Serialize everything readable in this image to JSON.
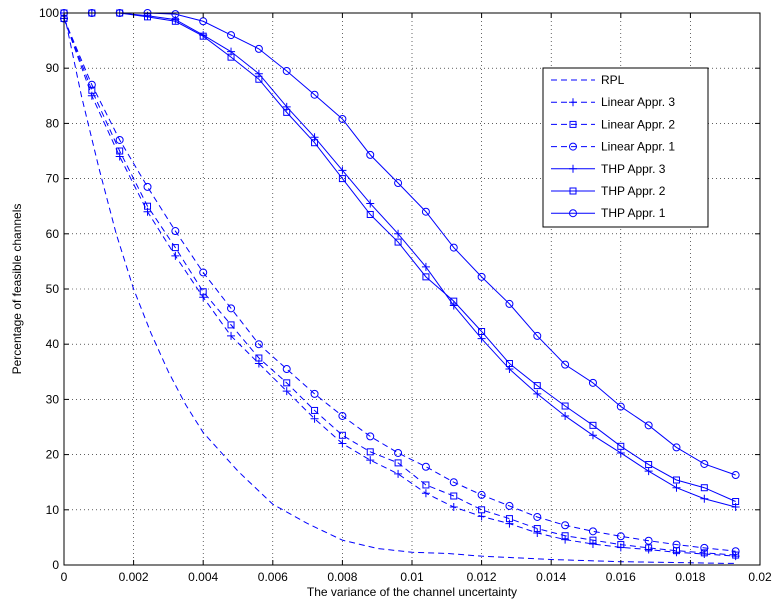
{
  "chart_data": {
    "type": "line",
    "title": "",
    "xlabel": "The variance of the channel uncertainty",
    "ylabel": "Percentage of feasible channels",
    "xlim": [
      0,
      0.02
    ],
    "ylim": [
      0,
      100
    ],
    "xticks": [
      0,
      0.002,
      0.004,
      0.006,
      0.008,
      0.01,
      0.012,
      0.014,
      0.016,
      0.018,
      0.02
    ],
    "xtick_labels": [
      "0",
      "0.002",
      "0.004",
      "0.006",
      "0.008",
      "0.01",
      "0.012",
      "0.014",
      "0.016",
      "0.018",
      "0.02"
    ],
    "yticks": [
      0,
      10,
      20,
      30,
      40,
      50,
      60,
      70,
      80,
      90,
      100
    ],
    "ytick_labels": [
      "0",
      "10",
      "20",
      "30",
      "40",
      "50",
      "60",
      "70",
      "80",
      "90",
      "100"
    ],
    "grid": true,
    "legend_position": "top-right",
    "line_color": "#0000ff",
    "series": [
      {
        "name": "RPL",
        "line": "dashed",
        "marker": "none",
        "x": [
          0,
          0.0005,
          0.001,
          0.0015,
          0.002,
          0.0025,
          0.003,
          0.0035,
          0.004,
          0.0045,
          0.005,
          0.0055,
          0.006,
          0.007,
          0.008,
          0.009,
          0.01,
          0.011,
          0.012,
          0.013,
          0.014,
          0.015,
          0.016,
          0.017,
          0.018,
          0.019,
          0.0193
        ],
        "y": [
          100,
          85,
          72,
          60,
          50,
          42,
          35,
          29,
          24,
          20.5,
          17,
          14,
          11,
          7.5,
          4.5,
          3,
          2.3,
          2.1,
          1.6,
          1.3,
          1,
          0.8,
          0.6,
          0.5,
          0.4,
          0.3,
          0.3
        ]
      },
      {
        "name": "Linear Appr. 3",
        "line": "dashed",
        "marker": "plus",
        "x": [
          0,
          0.0008,
          0.0016,
          0.0024,
          0.0032,
          0.004,
          0.0048,
          0.0056,
          0.0064,
          0.0072,
          0.008,
          0.0088,
          0.0096,
          0.0104,
          0.0112,
          0.012,
          0.0128,
          0.0136,
          0.0144,
          0.0152,
          0.016,
          0.0168,
          0.0176,
          0.0184,
          0.0193
        ],
        "y": [
          99,
          85,
          74,
          64,
          56,
          48.5,
          41.5,
          36.5,
          31.5,
          26.5,
          22,
          19,
          16.5,
          13,
          10.5,
          8.8,
          7.5,
          5.8,
          4.6,
          3.8,
          3.2,
          2.8,
          2.3,
          2,
          1.6
        ]
      },
      {
        "name": "Linear Appr. 2",
        "line": "dashed",
        "marker": "square",
        "x": [
          0,
          0.0008,
          0.0016,
          0.0024,
          0.0032,
          0.004,
          0.0048,
          0.0056,
          0.0064,
          0.0072,
          0.008,
          0.0088,
          0.0096,
          0.0104,
          0.0112,
          0.012,
          0.0128,
          0.0136,
          0.0144,
          0.0152,
          0.016,
          0.0168,
          0.0176,
          0.0184,
          0.0193
        ],
        "y": [
          99,
          86,
          75,
          65,
          57.5,
          49.5,
          43.5,
          37.5,
          33,
          28,
          23.5,
          20.5,
          18.5,
          14.5,
          12.5,
          10,
          8.4,
          6.6,
          5.3,
          4.5,
          3.7,
          3.1,
          2.6,
          2.2,
          1.8
        ]
      },
      {
        "name": "Linear Appr. 1",
        "line": "dashed",
        "marker": "circle",
        "x": [
          0,
          0.0008,
          0.0016,
          0.0024,
          0.0032,
          0.004,
          0.0048,
          0.0056,
          0.0064,
          0.0072,
          0.008,
          0.0088,
          0.0096,
          0.0104,
          0.0112,
          0.012,
          0.0128,
          0.0136,
          0.0144,
          0.0152,
          0.016,
          0.0168,
          0.0176,
          0.0184,
          0.0193
        ],
        "y": [
          99,
          87,
          77,
          68.5,
          60.5,
          53,
          46.5,
          40,
          35.5,
          31,
          27,
          23.3,
          20.3,
          17.8,
          15,
          12.7,
          10.7,
          8.7,
          7.2,
          6.1,
          5.2,
          4.4,
          3.7,
          3.1,
          2.5
        ]
      },
      {
        "name": "THP Appr. 3",
        "line": "solid",
        "marker": "plus",
        "x": [
          0,
          0.0008,
          0.0016,
          0.0024,
          0.0032,
          0.004,
          0.0048,
          0.0056,
          0.0064,
          0.0072,
          0.008,
          0.0088,
          0.0096,
          0.0104,
          0.0112,
          0.012,
          0.0128,
          0.0136,
          0.0144,
          0.0152,
          0.016,
          0.0168,
          0.0176,
          0.0184,
          0.0193
        ],
        "y": [
          100,
          100,
          100,
          99.5,
          98.8,
          96,
          93,
          89,
          83,
          77.5,
          71.5,
          65.5,
          60,
          54,
          47,
          41,
          35.5,
          31,
          27,
          23.5,
          20.3,
          17,
          14,
          12,
          10.5
        ]
      },
      {
        "name": "THP Appr. 2",
        "line": "solid",
        "marker": "square",
        "x": [
          0,
          0.0008,
          0.0016,
          0.0024,
          0.0032,
          0.004,
          0.0048,
          0.0056,
          0.0064,
          0.0072,
          0.008,
          0.0088,
          0.0096,
          0.0104,
          0.0112,
          0.012,
          0.0128,
          0.0136,
          0.0144,
          0.0152,
          0.016,
          0.0168,
          0.0176,
          0.0184,
          0.0193
        ],
        "y": [
          100,
          100,
          100,
          99.3,
          98.5,
          95.8,
          92,
          88,
          82,
          76.5,
          70,
          63.5,
          58.5,
          52.2,
          47.8,
          42.3,
          36.5,
          32.5,
          28.8,
          25.3,
          21.5,
          18.2,
          15.4,
          14,
          11.5
        ]
      },
      {
        "name": "THP Appr. 1",
        "line": "solid",
        "marker": "circle",
        "x": [
          0,
          0.0008,
          0.0016,
          0.0024,
          0.0032,
          0.004,
          0.0048,
          0.0056,
          0.0064,
          0.0072,
          0.008,
          0.0088,
          0.0096,
          0.0104,
          0.0112,
          0.012,
          0.0128,
          0.0136,
          0.0144,
          0.0152,
          0.016,
          0.0168,
          0.0176,
          0.0184,
          0.0193
        ],
        "y": [
          100,
          100,
          100,
          100,
          99.8,
          98.5,
          96,
          93.5,
          89.5,
          85.2,
          80.8,
          74.3,
          69.2,
          64,
          57.5,
          52.2,
          47.3,
          41.5,
          36.3,
          33,
          28.7,
          25.3,
          21.3,
          18.3,
          16.3
        ]
      }
    ]
  }
}
